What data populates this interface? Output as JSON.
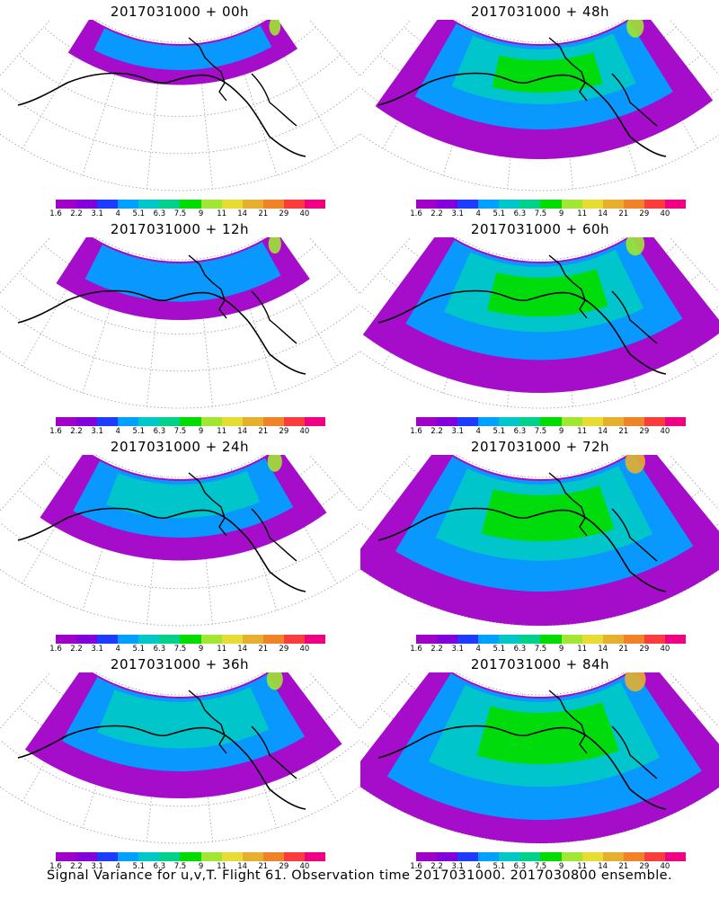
{
  "panels": [
    {
      "title": "2017031000 + 00h",
      "spread": 0.05
    },
    {
      "title": "2017031000 + 48h",
      "spread": 0.6
    },
    {
      "title": "2017031000 + 12h",
      "spread": 0.18
    },
    {
      "title": "2017031000 + 60h",
      "spread": 0.72
    },
    {
      "title": "2017031000 + 24h",
      "spread": 0.35
    },
    {
      "title": "2017031000 + 72h",
      "spread": 0.85
    },
    {
      "title": "2017031000 + 36h",
      "spread": 0.5
    },
    {
      "title": "2017031000 + 84h",
      "spread": 0.95
    }
  ],
  "colorbar": {
    "labels": [
      "1.6",
      "2.2",
      "3.1",
      "4",
      "5.1",
      "6.3",
      "7.5",
      "9",
      "11",
      "14",
      "21",
      "29",
      "40"
    ],
    "colors": [
      "#a000c8",
      "#8200dc",
      "#1e3cff",
      "#00a0ff",
      "#00c8c8",
      "#00d28c",
      "#00dc00",
      "#a0e632",
      "#e6dc32",
      "#e6af2d",
      "#f08228",
      "#fa3c3c",
      "#f00082"
    ]
  },
  "caption": "Signal Variance for u,v,T. Flight 61. Observation time 2017031000. 2017030800 ensemble."
}
